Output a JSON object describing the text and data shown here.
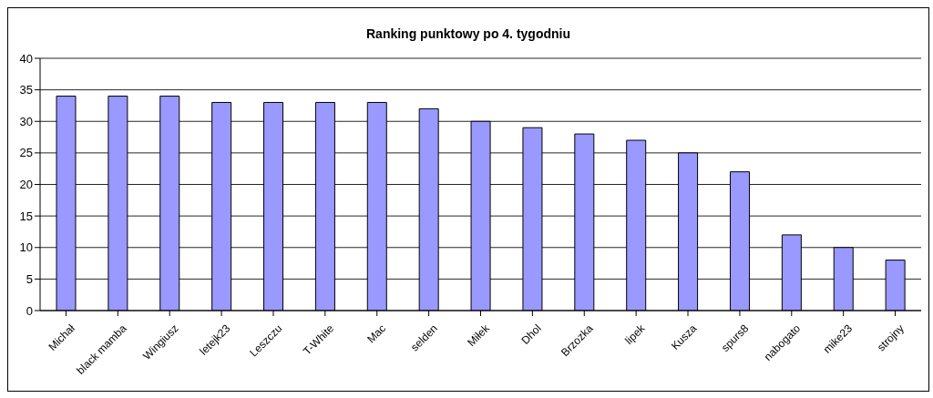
{
  "chart_data": {
    "type": "bar",
    "title": "Ranking punktowy po 4. tygodniu",
    "categories": [
      "Michał",
      "black mamba",
      "Wingiusz",
      "letejk23",
      "Leszczu",
      "T-White",
      "Mac",
      "selden",
      "Miłek",
      "Dhol",
      "Brzozka",
      "lipek",
      "Kusza",
      "spurs8",
      "nabogato",
      "mike23",
      "strojny"
    ],
    "values": [
      34,
      34,
      34,
      33,
      33,
      33,
      33,
      32,
      30,
      29,
      28,
      27,
      25,
      22,
      12,
      10,
      8
    ],
    "color": "#9999ff",
    "ylim": [
      0,
      40
    ],
    "yticks": [
      0,
      5,
      10,
      15,
      20,
      25,
      30,
      35,
      40
    ],
    "grid": "y"
  }
}
